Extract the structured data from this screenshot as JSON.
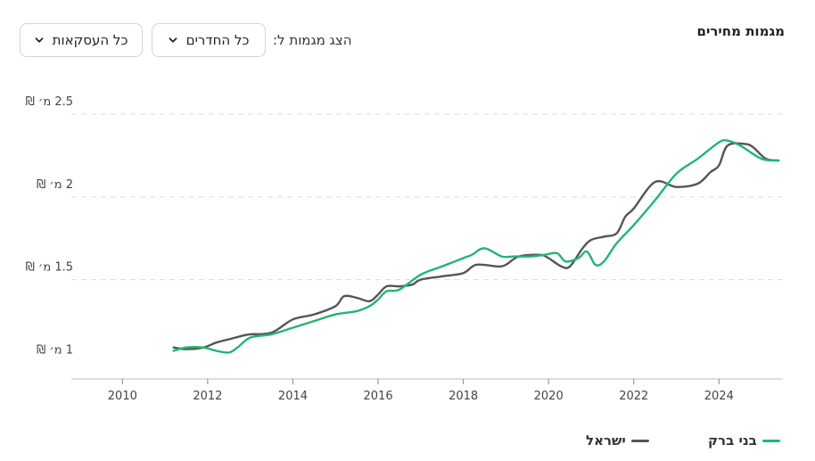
{
  "header": {
    "title": "מגמות מחירים",
    "show_label": "הצג מגמות ל:",
    "rooms_dropdown": "כל החדרים",
    "deals_dropdown": "כל העסקאות"
  },
  "chart_data": {
    "type": "line",
    "title": "מגמות מחירים",
    "xlabel": "",
    "ylabel": "",
    "xlim": [
      2008.8,
      2025.5
    ],
    "ylim": [
      0.9,
      2.5
    ],
    "x_ticks": [
      2010,
      2012,
      2014,
      2016,
      2018,
      2020,
      2022,
      2024
    ],
    "y_ticks": [
      {
        "value": 1.0,
        "label": "1 מ׳ ₪"
      },
      {
        "value": 1.5,
        "label": "1.5 מ׳ ₪"
      },
      {
        "value": 2.0,
        "label": "2 מ׳ ₪"
      },
      {
        "value": 2.5,
        "label": "2.5 מ׳ ₪"
      }
    ],
    "grid": true,
    "legend_position": "bottom",
    "series": [
      {
        "name": "בני ברק",
        "color": "#21b573",
        "x": [
          2011.2,
          2011.5,
          2011.9,
          2012.2,
          2012.5,
          2012.7,
          2013.0,
          2013.5,
          2014.0,
          2014.5,
          2015.0,
          2015.5,
          2015.8,
          2016.0,
          2016.2,
          2016.5,
          2017.0,
          2017.5,
          2018.0,
          2018.2,
          2018.5,
          2018.9,
          2019.2,
          2019.6,
          2019.9,
          2020.2,
          2020.4,
          2020.7,
          2020.9,
          2021.1,
          2021.3,
          2021.6,
          2022.0,
          2022.5,
          2023.0,
          2023.5,
          2024.0,
          2024.2,
          2024.5,
          2025.0,
          2025.4
        ],
        "values": [
          1.07,
          1.09,
          1.09,
          1.07,
          1.06,
          1.09,
          1.15,
          1.17,
          1.21,
          1.25,
          1.29,
          1.31,
          1.34,
          1.38,
          1.43,
          1.44,
          1.53,
          1.58,
          1.63,
          1.65,
          1.69,
          1.64,
          1.64,
          1.64,
          1.65,
          1.66,
          1.61,
          1.63,
          1.67,
          1.59,
          1.61,
          1.72,
          1.83,
          1.98,
          2.14,
          2.23,
          2.33,
          2.34,
          2.31,
          2.23,
          2.22
        ]
      },
      {
        "name": "ישראל",
        "color": "#555555",
        "x": [
          2011.2,
          2011.5,
          2011.9,
          2012.2,
          2012.5,
          2012.8,
          2013.0,
          2013.5,
          2014.0,
          2014.5,
          2015.0,
          2015.2,
          2015.5,
          2015.8,
          2016.0,
          2016.2,
          2016.5,
          2016.8,
          2017.0,
          2017.5,
          2018.0,
          2018.3,
          2018.8,
          2019.0,
          2019.3,
          2019.8,
          2020.0,
          2020.3,
          2020.5,
          2020.8,
          2021.0,
          2021.3,
          2021.6,
          2021.8,
          2022.0,
          2022.5,
          2023.0,
          2023.5,
          2023.8,
          2024.0,
          2024.2,
          2024.6,
          2024.8,
          2025.1,
          2025.4
        ],
        "values": [
          1.09,
          1.08,
          1.09,
          1.12,
          1.14,
          1.16,
          1.17,
          1.18,
          1.26,
          1.29,
          1.34,
          1.4,
          1.39,
          1.37,
          1.41,
          1.46,
          1.46,
          1.47,
          1.5,
          1.52,
          1.54,
          1.59,
          1.58,
          1.59,
          1.64,
          1.65,
          1.63,
          1.58,
          1.58,
          1.69,
          1.74,
          1.76,
          1.78,
          1.88,
          1.93,
          2.09,
          2.06,
          2.08,
          2.15,
          2.19,
          2.31,
          2.32,
          2.3,
          2.23,
          2.22
        ]
      }
    ]
  }
}
